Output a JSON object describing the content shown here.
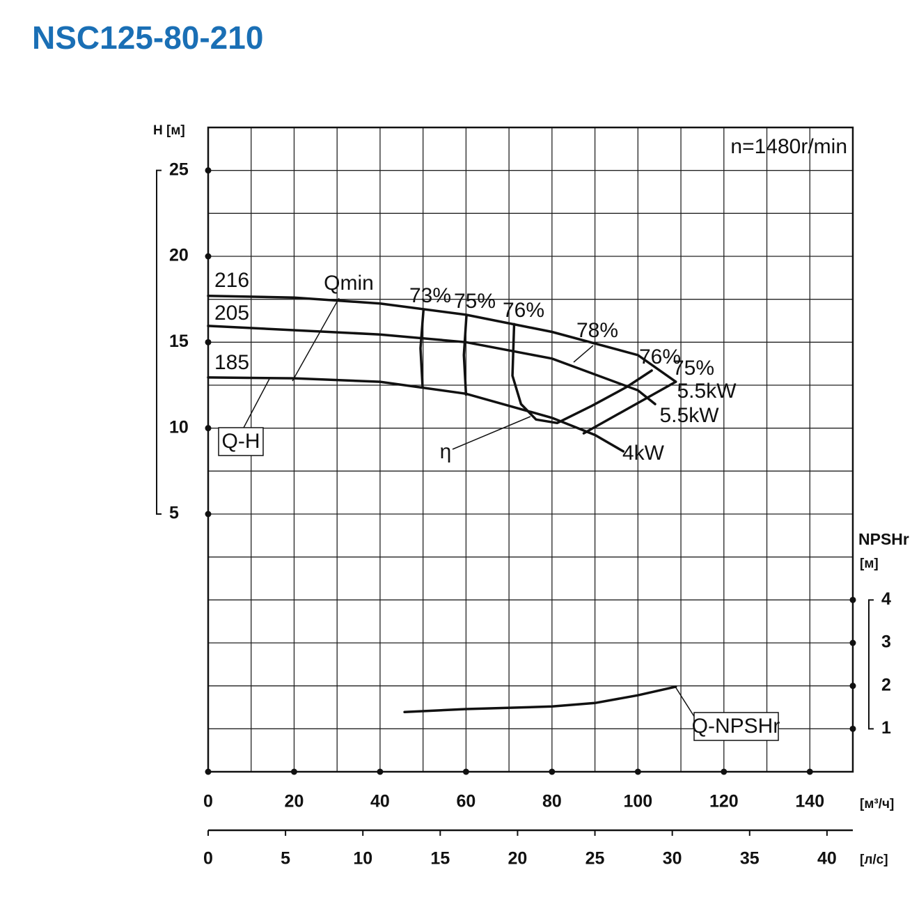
{
  "chart_data": {
    "type": "line",
    "title": "NSC125-80-210",
    "subtitle": "n=1480r/min",
    "y_label": "H [м]",
    "y2_label": "NPSHr",
    "y2_unit": "[м]",
    "x_label": "[м³/ч]",
    "x2_label": "[л/с]",
    "xlim": [
      0,
      150
    ],
    "xticks": [
      0,
      20,
      40,
      60,
      80,
      100,
      120,
      140
    ],
    "x2lim": [
      0,
      41.67
    ],
    "x2ticks": [
      0,
      5,
      10,
      15,
      20,
      25,
      30,
      35,
      40
    ],
    "ylim": [
      -10,
      27.5
    ],
    "yticks": [
      5,
      10,
      15,
      20,
      25
    ],
    "y2lim": [
      0,
      15
    ],
    "y2ticks": [
      1,
      2,
      3,
      4
    ],
    "grid": true,
    "color": "#111111",
    "series": [
      {
        "name": "216",
        "x": [
          0,
          20,
          40,
          60,
          80,
          100,
          108.8
        ],
        "values": [
          17.7,
          17.6,
          17.25,
          16.6,
          15.6,
          14.25,
          12.7
        ]
      },
      {
        "name": "205",
        "x": [
          0,
          40,
          60,
          80,
          100,
          104
        ],
        "values": [
          15.95,
          15.45,
          15.0,
          14.05,
          12.2,
          11.4
        ]
      },
      {
        "name": "185",
        "x": [
          0,
          20,
          40,
          60,
          80,
          90,
          96.6
        ],
        "values": [
          12.95,
          12.9,
          12.7,
          12.0,
          10.6,
          9.6,
          8.65
        ]
      },
      {
        "name": "Q-NPSHr",
        "axis": "y2",
        "x": [
          45.7,
          60,
          80,
          90,
          100,
          108.8
        ],
        "values": [
          1.39,
          1.46,
          1.52,
          1.6,
          1.78,
          1.98
        ]
      }
    ],
    "efficiency_lines": [
      {
        "x": [
          50.1,
          49.4,
          49.9
        ],
        "values": [
          16.9,
          14.65,
          12.4
        ]
      },
      {
        "x": [
          60.1,
          59.5,
          60,
          null,
          87.4,
          108.8
        ],
        "values": [
          16.55,
          14.25,
          11.95,
          null,
          9.7,
          12.7
        ]
      },
      {
        "x": [
          71.2,
          70.8,
          72.8,
          76.3,
          81.2,
          89.3,
          97.4,
          103.2
        ],
        "values": [
          16.05,
          13.05,
          11.4,
          10.5,
          10.3,
          11.3,
          12.4,
          13.35
        ]
      }
    ],
    "annotations": [
      "Q-H",
      "Qmin",
      "η",
      "73%",
      "75%",
      "76%",
      "78%",
      "76%",
      "75%",
      "5.5kW",
      "5.5kW",
      "4kW"
    ]
  }
}
